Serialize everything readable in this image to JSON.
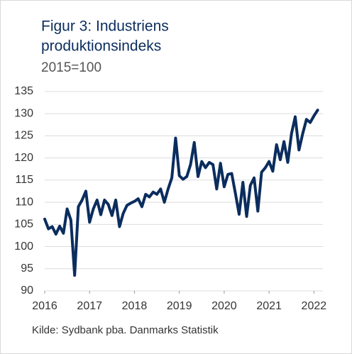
{
  "chart_data": {
    "type": "line",
    "title": [
      "Figur 3: Industriens",
      "produktionsindeks"
    ],
    "subtitle": "2015=100",
    "source": "Kilde: Sydbank pba. Danmarks Statistik",
    "x": [
      2016,
      2016.083,
      2016.167,
      2016.25,
      2016.333,
      2016.417,
      2016.5,
      2016.583,
      2016.667,
      2016.75,
      2016.833,
      2016.917,
      2017,
      2017.083,
      2017.167,
      2017.25,
      2017.333,
      2017.417,
      2017.5,
      2017.583,
      2017.667,
      2017.75,
      2017.833,
      2017.917,
      2018,
      2018.083,
      2018.167,
      2018.25,
      2018.333,
      2018.417,
      2018.5,
      2018.583,
      2018.667,
      2018.75,
      2018.833,
      2018.917,
      2019,
      2019.083,
      2019.167,
      2019.25,
      2019.333,
      2019.417,
      2019.5,
      2019.583,
      2019.667,
      2019.75,
      2019.833,
      2019.917,
      2020,
      2020.083,
      2020.167,
      2020.25,
      2020.333,
      2020.417,
      2020.5,
      2020.583,
      2020.667,
      2020.75,
      2020.833,
      2020.917,
      2021,
      2021.083,
      2021.167,
      2021.25,
      2021.333,
      2021.417,
      2021.5,
      2021.583,
      2021.667,
      2021.75,
      2021.833,
      2021.917,
      2022,
      2022.083
    ],
    "series": [
      {
        "color": "#0b2d5e",
        "values": [
          106.2,
          104,
          104.5,
          102.8,
          104.6,
          103,
          108.5,
          106,
          93.5,
          109,
          110.5,
          112.5,
          105.5,
          108.5,
          110.5,
          107.2,
          110.5,
          109.5,
          107,
          110.5,
          104.5,
          107.5,
          109.3,
          109.8,
          110.2,
          110.8,
          109,
          111.8,
          111.2,
          112.3,
          111.8,
          113,
          110,
          113,
          115.5,
          124.5,
          116,
          115.2,
          115.8,
          118.5,
          123.5,
          115.8,
          119.2,
          117.8,
          119,
          118.5,
          113,
          118.8,
          113.5,
          116.3,
          116.5,
          112,
          107.3,
          114.5,
          106.8,
          113.8,
          115.5,
          108,
          116.8,
          117.8,
          119.2,
          117,
          123,
          119.6,
          123.7,
          119,
          125.5,
          129.3,
          121.8,
          125.5,
          128.7,
          128,
          129.5,
          130.8
        ]
      }
    ],
    "xlim": [
      2016,
      2022.2
    ],
    "xticks": [
      2016,
      2017,
      2018,
      2019,
      2020,
      2021,
      2022
    ],
    "ylim": [
      90,
      135
    ],
    "yticks": [
      90,
      95,
      100,
      105,
      110,
      115,
      120,
      125,
      130,
      135
    ],
    "grid": true
  }
}
